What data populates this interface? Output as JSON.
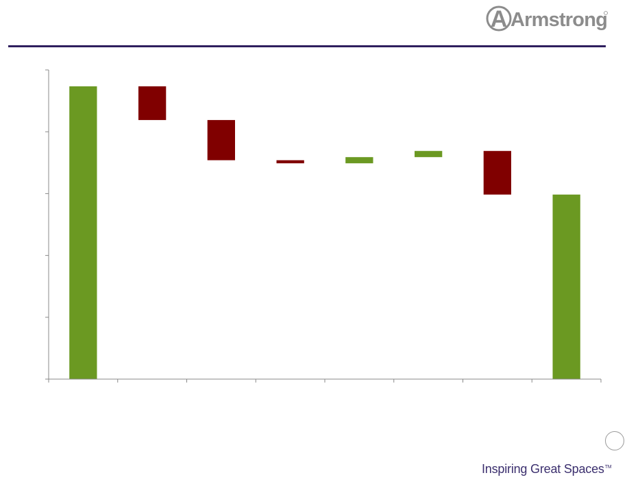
{
  "header": {
    "logo_text": "Armstrong",
    "logo_mark": "A"
  },
  "footer": {
    "tagline": "Inspiring Great Spaces",
    "trademark": "TM"
  },
  "colors": {
    "increase": "#6b9922",
    "decrease": "#800000",
    "accent": "#2e1f5e",
    "axis": "#888888"
  },
  "chart_data": {
    "type": "bar",
    "subtype": "waterfall",
    "title": "",
    "xlabel": "",
    "ylabel": "",
    "ylim": [
      0,
      100
    ],
    "categories": [
      "",
      "",
      "",
      "",
      "",
      "",
      "",
      ""
    ],
    "bars": [
      {
        "kind": "total",
        "base": 0,
        "top": 94.7
      },
      {
        "kind": "decrease",
        "base": 83.8,
        "top": 94.7
      },
      {
        "kind": "decrease",
        "base": 70.8,
        "top": 83.8
      },
      {
        "kind": "decrease",
        "base": 69.8,
        "top": 70.8
      },
      {
        "kind": "increase",
        "base": 69.8,
        "top": 71.8
      },
      {
        "kind": "increase",
        "base": 71.8,
        "top": 73.8
      },
      {
        "kind": "decrease",
        "base": 59.7,
        "top": 73.8
      },
      {
        "kind": "total",
        "base": 0,
        "top": 59.7
      }
    ],
    "grid": false,
    "legend": "none"
  }
}
